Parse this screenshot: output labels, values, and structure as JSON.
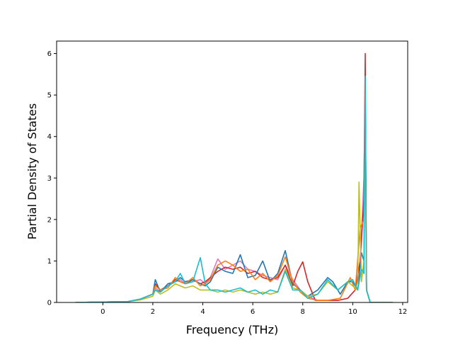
{
  "chart_data": {
    "type": "line",
    "title": "",
    "xlabel": "Frequency (THz)",
    "ylabel": "Partial Density of States",
    "xlim": [
      -1.85,
      12.2
    ],
    "ylim": [
      0,
      6.3
    ],
    "xticks": [
      0,
      2,
      4,
      6,
      8,
      10,
      12
    ],
    "yticks": [
      0,
      1,
      2,
      3,
      4,
      5,
      6
    ],
    "grid": false,
    "legend": "none",
    "colors": [
      "#1f77b4",
      "#ff7f0e",
      "#2ca02c",
      "#d62728",
      "#9467bd",
      "#8c564b",
      "#e377c2",
      "#7f7f7f",
      "#bcbd22",
      "#17becf"
    ],
    "series": [
      {
        "color": "#e377c2",
        "x": [
          -1.1,
          1.0,
          1.5,
          2.0,
          2.1,
          2.3,
          2.6,
          2.9,
          3.1,
          3.3,
          3.6,
          3.9,
          4.1,
          4.3,
          4.6,
          4.9,
          5.2,
          5.5,
          5.8,
          6.1,
          6.4,
          6.7,
          7.0,
          7.3,
          7.6,
          7.9,
          8.2,
          8.6,
          9.0,
          9.4,
          9.8,
          10.1,
          10.3,
          10.45,
          10.5,
          10.55,
          10.7,
          11.6
        ],
        "y": [
          0,
          0.02,
          0.08,
          0.2,
          0.35,
          0.25,
          0.4,
          0.5,
          0.55,
          0.45,
          0.5,
          0.55,
          0.45,
          0.6,
          1.05,
          0.8,
          0.9,
          1.0,
          0.8,
          0.75,
          0.65,
          0.6,
          0.55,
          0.9,
          0.55,
          0.3,
          0.15,
          0.05,
          0.05,
          0.05,
          0.1,
          0.3,
          1.0,
          3.0,
          5.0,
          0.3,
          0,
          0
        ]
      },
      {
        "color": "#d62728",
        "x": [
          -1.1,
          1.0,
          1.5,
          2.0,
          2.1,
          2.3,
          2.6,
          2.9,
          3.1,
          3.3,
          3.6,
          3.9,
          4.1,
          4.3,
          4.6,
          4.9,
          5.2,
          5.5,
          5.8,
          6.1,
          6.4,
          6.7,
          7.0,
          7.3,
          7.6,
          7.8,
          8.0,
          8.2,
          8.5,
          9.0,
          9.4,
          9.8,
          10.1,
          10.3,
          10.45,
          10.5,
          10.55,
          10.7,
          11.6
        ],
        "y": [
          0,
          0.02,
          0.08,
          0.2,
          0.45,
          0.3,
          0.4,
          0.55,
          0.5,
          0.45,
          0.55,
          0.45,
          0.5,
          0.6,
          0.75,
          0.85,
          0.8,
          0.85,
          0.7,
          0.75,
          0.6,
          0.55,
          0.6,
          0.9,
          0.4,
          0.75,
          0.98,
          0.5,
          0.05,
          0.05,
          0.05,
          0.1,
          0.3,
          1.0,
          2.5,
          6.0,
          0.3,
          0,
          0
        ]
      },
      {
        "color": "#1f77b4",
        "x": [
          -1.1,
          1.0,
          1.5,
          2.0,
          2.1,
          2.3,
          2.6,
          2.9,
          3.1,
          3.3,
          3.6,
          3.9,
          4.1,
          4.3,
          4.6,
          4.9,
          5.2,
          5.5,
          5.8,
          6.1,
          6.4,
          6.7,
          7.0,
          7.3,
          7.6,
          7.9,
          8.2,
          8.6,
          9.0,
          9.2,
          9.5,
          9.8,
          10.0,
          10.2,
          10.35,
          10.45,
          10.5,
          10.55,
          10.7,
          11.6
        ],
        "y": [
          0,
          0.02,
          0.08,
          0.2,
          0.55,
          0.25,
          0.45,
          0.5,
          0.6,
          0.5,
          0.55,
          0.45,
          0.4,
          0.5,
          0.85,
          0.75,
          0.7,
          1.15,
          0.6,
          0.65,
          1.0,
          0.5,
          0.7,
          1.25,
          0.45,
          0.3,
          0.15,
          0.3,
          0.6,
          0.5,
          0.2,
          0.5,
          0.5,
          0.3,
          1.2,
          1.0,
          5.4,
          0.3,
          0,
          0
        ]
      },
      {
        "color": "#ff7f0e",
        "x": [
          -1.1,
          1.0,
          1.5,
          2.0,
          2.1,
          2.3,
          2.6,
          2.9,
          3.1,
          3.3,
          3.6,
          3.9,
          4.1,
          4.3,
          4.6,
          4.9,
          5.2,
          5.5,
          5.8,
          6.1,
          6.4,
          6.7,
          7.0,
          7.3,
          7.6,
          7.9,
          8.2,
          8.6,
          9.0,
          9.5,
          9.9,
          10.1,
          10.3,
          10.45,
          10.5,
          10.55,
          10.7,
          11.6
        ],
        "y": [
          0,
          0.02,
          0.08,
          0.2,
          0.4,
          0.3,
          0.35,
          0.6,
          0.5,
          0.45,
          0.6,
          0.4,
          0.45,
          0.55,
          0.9,
          1.0,
          0.9,
          0.75,
          0.8,
          0.55,
          0.7,
          0.5,
          0.65,
          1.1,
          0.5,
          0.25,
          0.1,
          0.05,
          0.05,
          0.1,
          0.6,
          0.3,
          1.8,
          2.0,
          4.5,
          0.3,
          0,
          0
        ]
      },
      {
        "color": "#bcbd22",
        "x": [
          -1.1,
          1.0,
          1.5,
          2.0,
          2.1,
          2.3,
          2.6,
          2.9,
          3.1,
          3.3,
          3.6,
          3.9,
          4.1,
          4.3,
          4.6,
          4.9,
          5.2,
          5.5,
          5.8,
          6.1,
          6.4,
          6.7,
          7.0,
          7.3,
          7.6,
          7.9,
          8.2,
          8.6,
          9.0,
          9.4,
          9.8,
          10.0,
          10.2,
          10.25,
          10.35,
          10.45,
          10.5,
          10.55,
          10.7,
          11.6
        ],
        "y": [
          0,
          0.02,
          0.06,
          0.15,
          0.3,
          0.2,
          0.3,
          0.45,
          0.4,
          0.35,
          0.4,
          0.3,
          0.3,
          0.3,
          0.25,
          0.3,
          0.25,
          0.3,
          0.25,
          0.2,
          0.25,
          0.2,
          0.25,
          0.8,
          0.35,
          0.3,
          0.15,
          0.2,
          0.5,
          0.3,
          0.5,
          0.4,
          0.3,
          2.9,
          0.5,
          1.0,
          4.5,
          0.3,
          0,
          0
        ]
      },
      {
        "color": "#17becf",
        "x": [
          -1.1,
          1.0,
          1.5,
          2.0,
          2.1,
          2.3,
          2.6,
          2.9,
          3.1,
          3.3,
          3.6,
          3.9,
          4.1,
          4.3,
          4.6,
          4.9,
          5.2,
          5.5,
          5.8,
          6.1,
          6.4,
          6.7,
          7.0,
          7.3,
          7.6,
          7.9,
          8.2,
          8.6,
          9.0,
          9.4,
          9.8,
          10.0,
          10.2,
          10.35,
          10.45,
          10.5,
          10.55,
          10.7,
          11.6
        ],
        "y": [
          0,
          0.02,
          0.08,
          0.2,
          0.3,
          0.25,
          0.4,
          0.5,
          0.7,
          0.45,
          0.5,
          1.08,
          0.45,
          0.3,
          0.3,
          0.25,
          0.3,
          0.35,
          0.25,
          0.3,
          0.2,
          0.3,
          0.25,
          0.75,
          0.3,
          0.3,
          0.1,
          0.2,
          0.55,
          0.3,
          0.5,
          0.55,
          0.3,
          0.8,
          0.7,
          5.45,
          0.3,
          0,
          0
        ]
      }
    ]
  }
}
